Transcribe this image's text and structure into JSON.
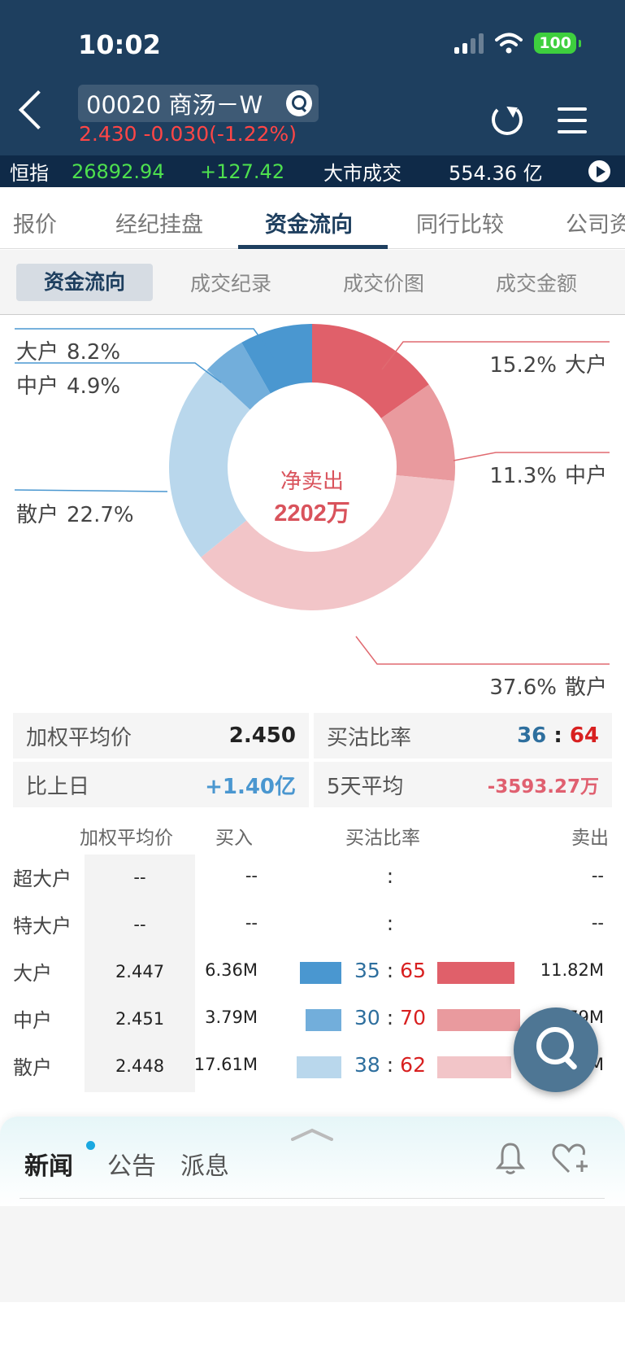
{
  "status_bar": {
    "time": "10:02",
    "battery": "100"
  },
  "header": {
    "stock_title": "00020 商汤－W",
    "price_line": "2.430 -0.030(-1.22%)"
  },
  "ticker": {
    "index_label": "恒指",
    "index_value": "26892.94",
    "index_change": "+127.42",
    "turnover_label": "大市成交",
    "turnover_value": "554.36 亿"
  },
  "tabs": [
    "报价",
    "经纪挂盘",
    "资金流向",
    "同行比较",
    "公司资"
  ],
  "subtabs": [
    "资金流向",
    "成交纪录",
    "成交价图",
    "成交金额"
  ],
  "chart_data": {
    "type": "pie",
    "title": "",
    "center_label": "净卖出",
    "center_value": "2202万",
    "slices": [
      {
        "label": "大户",
        "value": 15.2,
        "display": "15.2%",
        "side": "sell",
        "color": "#e0606a"
      },
      {
        "label": "中户",
        "value": 11.3,
        "display": "11.3%",
        "side": "sell",
        "color": "#e99a9e"
      },
      {
        "label": "散户",
        "value": 37.6,
        "display": "37.6%",
        "side": "sell",
        "color": "#f2c5c8"
      },
      {
        "label": "散户",
        "value": 22.7,
        "display": "22.7%",
        "side": "buy",
        "color": "#b9d7ec"
      },
      {
        "label": "中户",
        "value": 4.9,
        "display": "4.9%",
        "side": "buy",
        "color": "#72aedb"
      },
      {
        "label": "大户",
        "value": 8.2,
        "display": "8.2%",
        "side": "buy",
        "color": "#4a97d0"
      }
    ]
  },
  "summary": {
    "wavg_label": "加权平均价",
    "wavg_value": "2.450",
    "ratio_label": "买沽比率",
    "ratio_buy": "36",
    "ratio_sep": ":",
    "ratio_sell": "64",
    "prev_label": "比上日",
    "prev_value": "+1.40亿",
    "avg5_label": "5天平均",
    "avg5_value": "-3593.27万"
  },
  "table": {
    "headers": {
      "avg": "加权平均价",
      "buy": "买入",
      "ratio": "买沽比率",
      "sell": "卖出"
    },
    "rows": [
      {
        "name": "超大户",
        "avg": "--",
        "buy": "--",
        "ratio_buy": "",
        "sep": ":",
        "ratio_sell": "",
        "sell": "--",
        "buy_pct": 0,
        "sell_pct": 0
      },
      {
        "name": "特大户",
        "avg": "--",
        "buy": "--",
        "ratio_buy": "",
        "sep": ":",
        "ratio_sell": "",
        "sell": "--",
        "buy_pct": 0,
        "sell_pct": 0
      },
      {
        "name": "大户",
        "avg": "2.447",
        "buy": "6.36M",
        "ratio_buy": "35",
        "sep": ":",
        "ratio_sell": "65",
        "sell": "11.82M",
        "buy_pct": 35,
        "sell_pct": 65
      },
      {
        "name": "中户",
        "avg": "2.451",
        "buy": "3.79M",
        "ratio_buy": "30",
        "sep": ":",
        "ratio_sell": "70",
        "sell": "8.79M",
        "buy_pct": 30,
        "sell_pct": 70
      },
      {
        "name": "散户",
        "avg": "2.448",
        "buy": "17.61M",
        "ratio_buy": "38",
        "sep": ":",
        "ratio_sell": "62",
        "sell": "29.17M",
        "buy_pct": 38,
        "sell_pct": 62
      }
    ]
  },
  "news": {
    "tabs": [
      "新闻",
      "公告",
      "派息"
    ]
  }
}
